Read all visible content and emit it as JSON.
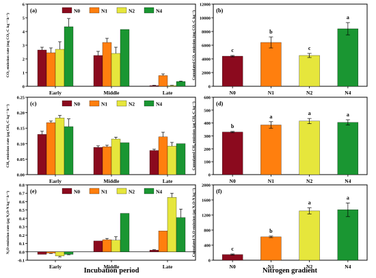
{
  "figure": {
    "x_title_left": "Incubation period",
    "x_title_right": "Nitrogen gradient"
  },
  "colors": {
    "N0": "#8b0a1e",
    "N1": "#ff7f0e",
    "N2": "#e6e63c",
    "N4": "#1a9632"
  },
  "chart_data": [
    {
      "id": "a",
      "type": "bar",
      "panel_label": "(a)",
      "categories": [
        "Early",
        "Middle",
        "Late"
      ],
      "series": [
        {
          "name": "N0",
          "values": [
            2.65,
            2.25,
            0.05
          ],
          "errors": [
            0.2,
            0.3,
            0.02
          ]
        },
        {
          "name": "N1",
          "values": [
            2.45,
            3.2,
            0.78
          ],
          "errors": [
            0.35,
            0.3,
            0.12
          ]
        },
        {
          "name": "N2",
          "values": [
            2.7,
            2.4,
            0.05
          ],
          "errors": [
            0.55,
            0.45,
            0.02
          ]
        },
        {
          "name": "N4",
          "values": [
            4.35,
            4.15,
            0.35
          ],
          "errors": [
            0.6,
            0.0,
            0.03
          ]
        }
      ],
      "ylabel": "CO₂ emission rate (mg CO₂-C kg⁻¹ h⁻¹)",
      "ylim": [
        0,
        6
      ],
      "yticks": [
        0,
        1,
        2,
        3,
        4,
        5,
        6
      ],
      "ytick_labels": [
        "0",
        "1",
        "2",
        "3",
        "4",
        "5",
        "6"
      ],
      "legend": [
        "N0",
        "N1",
        "N2",
        "N4"
      ],
      "legend_position": "top"
    },
    {
      "id": "b",
      "type": "bar",
      "panel_label": "(b)",
      "categories": [
        "N0",
        "N1",
        "N2",
        "N4"
      ],
      "values": [
        4400,
        6400,
        4500,
        8400
      ],
      "errors": [
        100,
        800,
        300,
        900
      ],
      "letters": [
        "c",
        "b",
        "c",
        "a"
      ],
      "ylabel": "Cumulated CO₂ emission (mg CO₂-C kg⁻¹)",
      "ylim": [
        0,
        12000
      ],
      "yticks": [
        0,
        2000,
        4000,
        6000,
        8000,
        10000,
        12000
      ],
      "ytick_labels": [
        "0",
        "2000",
        "4000",
        "6000",
        "8000",
        "10000",
        "12000"
      ]
    },
    {
      "id": "c",
      "type": "bar",
      "panel_label": "(c)",
      "categories": [
        "Early",
        "Middle",
        "Late"
      ],
      "series": [
        {
          "name": "N0",
          "values": [
            0.13,
            0.088,
            0.078
          ],
          "errors": [
            0.01,
            0.005,
            0.004
          ]
        },
        {
          "name": "N1",
          "values": [
            0.168,
            0.09,
            0.122
          ],
          "errors": [
            0.005,
            0.005,
            0.015
          ]
        },
        {
          "name": "N2",
          "values": [
            0.183,
            0.115,
            0.092
          ],
          "errors": [
            0.008,
            0.006,
            0.012
          ]
        },
        {
          "name": "N4",
          "values": [
            0.155,
            0.103,
            0.1
          ],
          "errors": [
            0.025,
            0.0,
            0.0
          ]
        }
      ],
      "ylabel": "CH₄ emission rate (µg CH₄-C kg⁻¹ h⁻¹)",
      "ylim": [
        0,
        0.25
      ],
      "yticks": [
        0,
        0.05,
        0.1,
        0.15,
        0.2,
        0.25
      ],
      "ytick_labels": [
        "0.00",
        "0.05",
        "0.10",
        "0.15",
        "0.20",
        "0.25"
      ],
      "legend": [
        "N0",
        "N1",
        "N2",
        "N4"
      ],
      "legend_position": "top"
    },
    {
      "id": "d",
      "type": "bar",
      "panel_label": "(d)",
      "categories": [
        "N0",
        "N1",
        "N2",
        "N4"
      ],
      "values": [
        330,
        385,
        415,
        405
      ],
      "errors": [
        5,
        25,
        20,
        20
      ],
      "letters": [
        "b",
        "a",
        "a",
        "a"
      ],
      "ylabel": "Cumulated CH₄ emission (µg CH₄-C kg⁻¹)",
      "ylim": [
        0,
        600
      ],
      "yticks": [
        0,
        100,
        200,
        300,
        400,
        500,
        600
      ],
      "ytick_labels": [
        "0",
        "100",
        "200",
        "300",
        "400",
        "500",
        "600"
      ]
    },
    {
      "id": "e",
      "type": "bar",
      "panel_label": "(e)",
      "categories": [
        "Early",
        "Middle",
        "Late"
      ],
      "series": [
        {
          "name": "N0",
          "values": [
            -0.03,
            0.13,
            0.02
          ],
          "errors": [
            0.0,
            0.0,
            0.005
          ]
        },
        {
          "name": "N1",
          "values": [
            -0.015,
            0.145,
            0.25
          ],
          "errors": [
            0.005,
            0.015,
            0.0
          ]
        },
        {
          "name": "N2",
          "values": [
            -0.05,
            0.14,
            0.65
          ],
          "errors": [
            0.01,
            0.04,
            0.05
          ]
        },
        {
          "name": "N4",
          "values": [
            -0.03,
            0.46,
            0.41
          ],
          "errors": [
            0.005,
            0.0,
            0.1
          ]
        }
      ],
      "ylabel": "N₂O emission rate (µg N₂O-N kg⁻¹ h⁻¹)",
      "ylim": [
        -0.1,
        0.8
      ],
      "yticks": [
        -0.1,
        0.0,
        0.1,
        0.2,
        0.3,
        0.4,
        0.5,
        0.6,
        0.7,
        0.8
      ],
      "ytick_labels": [
        "-0.1",
        "0.0",
        "0.1",
        "0.2",
        "0.3",
        "0.4",
        "0.5",
        "0.6",
        "0.7",
        "0.8"
      ],
      "legend": [
        "N0",
        "N1",
        "N2",
        "N4"
      ],
      "legend_position": "top"
    },
    {
      "id": "f",
      "type": "bar",
      "panel_label": "(f)",
      "categories": [
        "N0",
        "N1",
        "N2",
        "N4"
      ],
      "values": [
        150,
        620,
        1310,
        1340
      ],
      "errors": [
        15,
        20,
        80,
        180
      ],
      "letters": [
        "c",
        "b",
        "a",
        "a"
      ],
      "ylabel": "Cumulated N₂O emission (µg N₂O-N kg⁻¹)",
      "ylim": [
        0,
        2000
      ],
      "yticks": [
        0,
        400,
        800,
        1200,
        1600,
        2000
      ],
      "ytick_labels": [
        "0",
        "400",
        "800",
        "1200",
        "1600",
        "2000"
      ]
    }
  ]
}
